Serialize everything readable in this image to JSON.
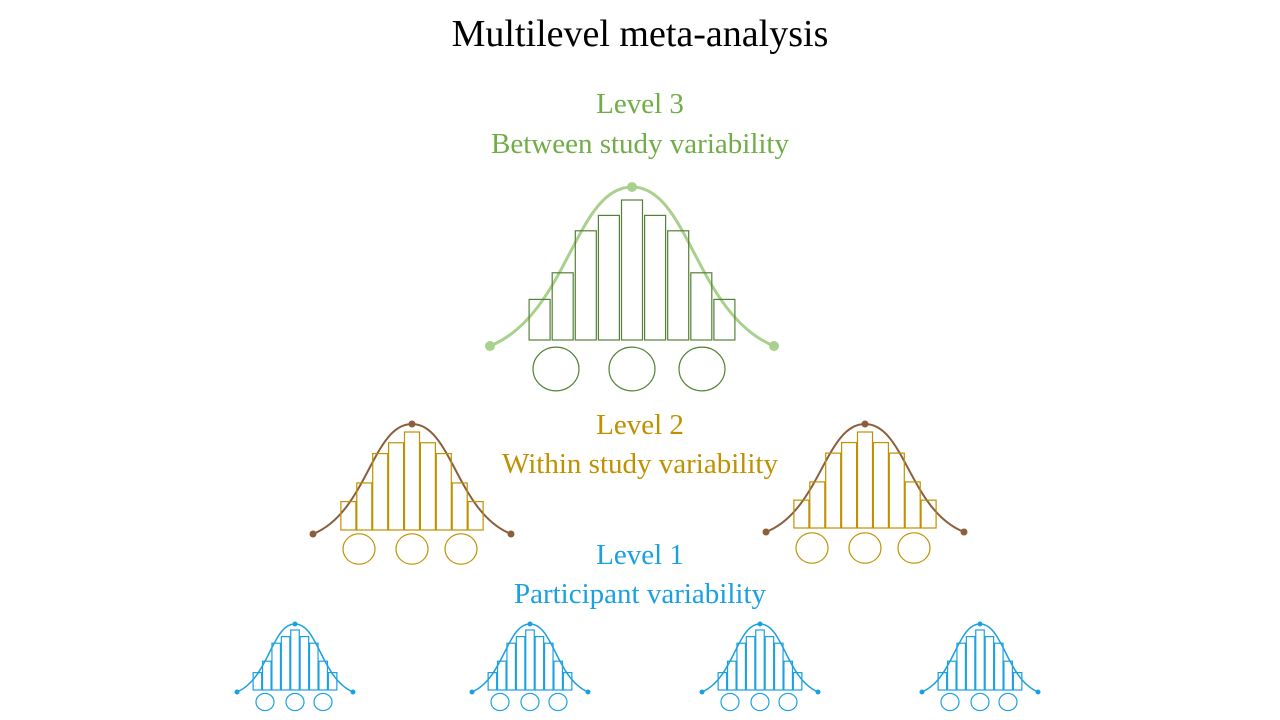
{
  "title": "Multilevel meta-analysis",
  "levels": [
    {
      "heading": "Level 3",
      "caption": "Between study variability",
      "color": "#70ad47",
      "curve_color": "#a9d18e",
      "bar_color": "#548235"
    },
    {
      "heading": "Level 2",
      "caption": "Within study variability",
      "color": "#bf9000",
      "curve_color": "#8b5e3c",
      "bar_color": "#bf9000"
    },
    {
      "heading": "Level 1",
      "caption": "Participant variability",
      "color": "#1ba1e2",
      "curve_color": "#1ba1e2",
      "bar_color": "#1ba1e2"
    }
  ]
}
